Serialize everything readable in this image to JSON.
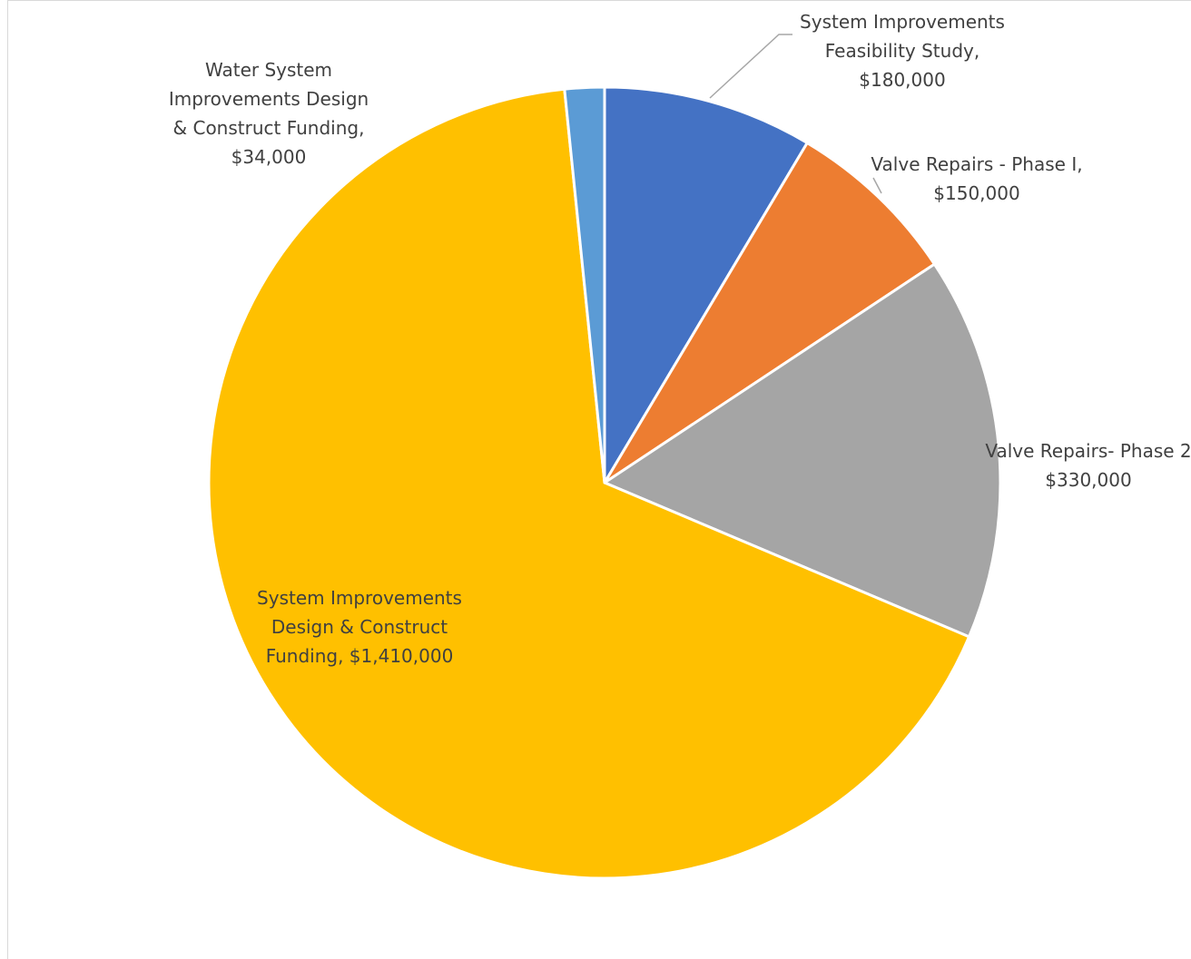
{
  "chart_data": {
    "type": "pie",
    "title": "",
    "start_angle_deg": 0,
    "direction": "clockwise",
    "slices": [
      {
        "name": "System Improvements Feasibility Study",
        "value": 180000,
        "label_lines": [
          "System Improvements",
          "Feasibility Study,",
          "$180,000"
        ],
        "color": "#4472C4"
      },
      {
        "name": "Valve Repairs - Phase I",
        "value": 150000,
        "label_lines": [
          "Valve Repairs - Phase I,",
          "$150,000"
        ],
        "color": "#ED7D31"
      },
      {
        "name": "Valve Repairs- Phase 2",
        "value": 330000,
        "label_lines": [
          "Valve Repairs- Phase 2",
          "$330,000"
        ],
        "color": "#A5A5A5"
      },
      {
        "name": "System Improvements Design & Construct Funding",
        "value": 1410000,
        "label_lines": [
          "System Improvements",
          "Design & Construct",
          "Funding, $1,410,000"
        ],
        "color": "#FFC000"
      },
      {
        "name": "Water System Improvements Design & Construct Funding",
        "value": 34000,
        "label_lines": [
          "Water System",
          "Improvements Design",
          "& Construct Funding,",
          "$34,000"
        ],
        "color": "#5B9BD5"
      }
    ]
  }
}
